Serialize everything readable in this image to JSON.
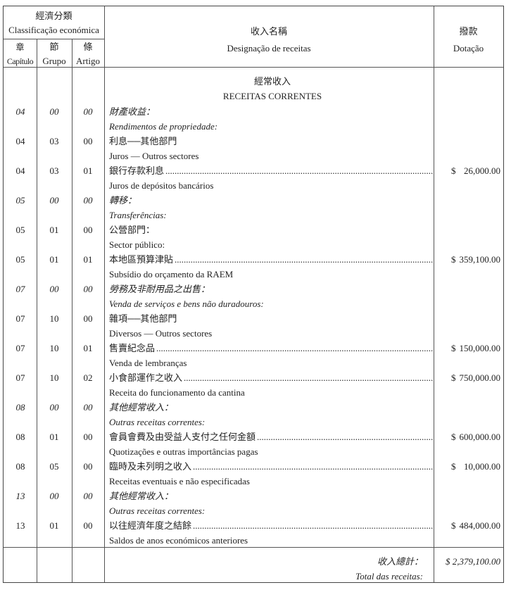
{
  "header": {
    "classification_zh": "經濟分類",
    "classification_pt": "Classificação económica",
    "chapter_zh": "章",
    "chapter_pt": "Capítulo",
    "group_zh": "節",
    "group_pt": "Grupo",
    "article_zh": "條",
    "article_pt": "Artigo",
    "designation_zh": "收入名稱",
    "designation_pt": "Designação de receitas",
    "dotation_zh": "撥款",
    "dotation_pt": "Dotação"
  },
  "section": {
    "title_zh": "經常收入",
    "title_pt": "RECEITAS CORRENTES"
  },
  "rows": [
    {
      "cap": "04",
      "grp": "00",
      "art": "00",
      "zh": "財產收益：",
      "pt": "Rendimentos de propriedade:",
      "italic": true
    },
    {
      "cap": "04",
      "grp": "03",
      "art": "00",
      "zh": "利息──其他部門",
      "pt": "Juros — Outros sectores"
    },
    {
      "cap": "04",
      "grp": "03",
      "art": "01",
      "zh": "銀行存款利息",
      "pt": "Juros de depósitos bancários",
      "currency": "$",
      "amount": "26,000.00"
    },
    {
      "cap": "05",
      "grp": "00",
      "art": "00",
      "zh": "轉移：",
      "pt": "Transferências:",
      "italic": true
    },
    {
      "cap": "05",
      "grp": "01",
      "art": "00",
      "zh": "公營部門：",
      "pt": "Sector público:"
    },
    {
      "cap": "05",
      "grp": "01",
      "art": "01",
      "zh": "本地區預算津貼",
      "pt": "Subsídio do orçamento da RAEM",
      "currency": "$",
      "amount": "359,100.00"
    },
    {
      "cap": "07",
      "grp": "00",
      "art": "00",
      "zh": "勞務及非耐用品之出售：",
      "pt": "Venda de serviços e bens não duradouros:",
      "italic": true
    },
    {
      "cap": "07",
      "grp": "10",
      "art": "00",
      "zh": "雜項──其他部門",
      "pt": "Diversos — Outros sectores"
    },
    {
      "cap": "07",
      "grp": "10",
      "art": "01",
      "zh": "售賣紀念品",
      "pt": "Venda de lembranças",
      "currency": "$",
      "amount": "150,000.00"
    },
    {
      "cap": "07",
      "grp": "10",
      "art": "02",
      "zh": "小食部運作之收入",
      "pt": "Receita do funcionamento da cantina",
      "currency": "$",
      "amount": "750,000.00"
    },
    {
      "cap": "08",
      "grp": "00",
      "art": "00",
      "zh": "其他經常收入：",
      "pt": "Outras receitas correntes:",
      "italic": true
    },
    {
      "cap": "08",
      "grp": "01",
      "art": "00",
      "zh": "會員會費及由受益人支付之任何金額",
      "pt": "Quotizações e outras importâncias pagas",
      "currency": "$",
      "amount": "600,000.00"
    },
    {
      "cap": "08",
      "grp": "05",
      "art": "00",
      "zh": "臨時及未列明之收入",
      "pt": "Receitas eventuais e não especificadas",
      "currency": "$",
      "amount": "10,000.00"
    },
    {
      "cap": "13",
      "grp": "00",
      "art": "00",
      "zh": "其他經常收入：",
      "pt": "Outras receitas correntes:",
      "italic": true
    },
    {
      "cap": "13",
      "grp": "01",
      "art": "00",
      "zh": "以往經濟年度之結餘",
      "pt": "Saldos de anos económicos anteriores",
      "currency": "$",
      "amount": "484,000.00"
    }
  ],
  "total": {
    "label_zh": "收入總計：",
    "label_pt": "Total das receitas:",
    "value": "$ 2,379,100.00"
  }
}
